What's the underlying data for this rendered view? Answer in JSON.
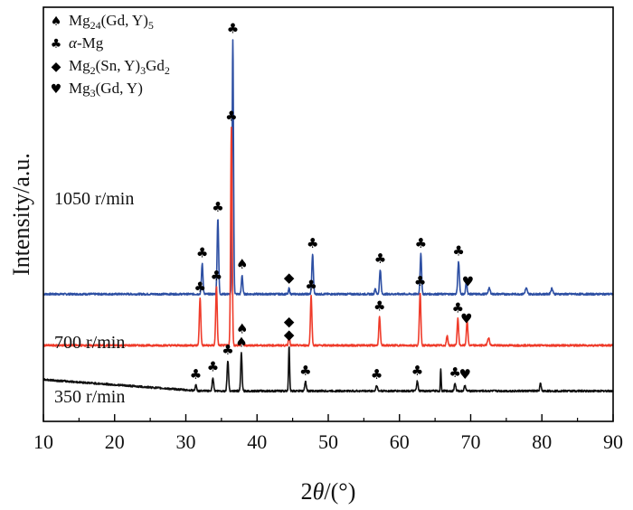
{
  "chart_data": {
    "type": "line",
    "xlabel_prefix": "2",
    "xlabel_var": "θ",
    "xlabel_suffix": "/(°)",
    "ylabel": "Intensity/a.u.",
    "xlim": [
      10,
      90
    ],
    "x_ticks": [
      "10",
      "20",
      "30",
      "40",
      "50",
      "60",
      "70",
      "80",
      "90"
    ],
    "grid": false,
    "legend_position": "top-left",
    "legend": [
      {
        "symbol": "♠",
        "symbol_name": "spade-icon",
        "parts": [
          [
            "Mg",
            ""
          ],
          [
            "24",
            "sub"
          ],
          [
            "(Gd, Y)",
            ""
          ],
          [
            "5",
            "sub"
          ]
        ]
      },
      {
        "symbol": "♣",
        "symbol_name": "club-icon",
        "parts": [
          [
            "α",
            "italic"
          ],
          [
            "-Mg",
            ""
          ]
        ]
      },
      {
        "symbol": "◆",
        "symbol_name": "diamond-icon",
        "parts": [
          [
            "Mg",
            ""
          ],
          [
            "2",
            "sub"
          ],
          [
            "(Sn, Y)",
            ""
          ],
          [
            "3",
            "sub"
          ],
          [
            "Gd",
            ""
          ],
          [
            "2",
            "sub"
          ]
        ]
      },
      {
        "symbol": "♥",
        "symbol_name": "heart-icon",
        "parts": [
          [
            "Mg",
            ""
          ],
          [
            "3",
            "sub"
          ],
          [
            "(Gd, Y)",
            ""
          ]
        ]
      }
    ],
    "series": [
      {
        "name": "1050 r/min",
        "color": "#2d4fa3",
        "baseline": 0.27,
        "peaks": [
          [
            32.3,
            0.16,
            0.22
          ],
          [
            34.5,
            0.4,
            0.22
          ],
          [
            36.6,
            1.34,
            0.2
          ],
          [
            37.9,
            0.1,
            0.2
          ],
          [
            44.5,
            0.03,
            0.18
          ],
          [
            47.8,
            0.21,
            0.22
          ],
          [
            56.6,
            0.03,
            0.2
          ],
          [
            57.3,
            0.13,
            0.22
          ],
          [
            63.0,
            0.21,
            0.22
          ],
          [
            68.3,
            0.17,
            0.24
          ],
          [
            69.4,
            0.07,
            0.2
          ],
          [
            72.6,
            0.03,
            0.3
          ],
          [
            77.8,
            0.03,
            0.3
          ],
          [
            81.4,
            0.03,
            0.3
          ]
        ],
        "markers": [
          {
            "x": 32.3,
            "symbol": "♣",
            "symbol_name": "club-icon"
          },
          {
            "x": 34.5,
            "symbol": "♣",
            "symbol_name": "club-icon"
          },
          {
            "x": 36.6,
            "symbol": "♣",
            "symbol_name": "club-icon"
          },
          {
            "x": 37.9,
            "symbol": "♠",
            "symbol_name": "spade-icon"
          },
          {
            "x": 44.5,
            "symbol": "◆",
            "symbol_name": "diamond-icon"
          },
          {
            "x": 47.8,
            "symbol": "♣",
            "symbol_name": "club-icon"
          },
          {
            "x": 57.3,
            "symbol": "♣",
            "symbol_name": "club-icon"
          },
          {
            "x": 63.0,
            "symbol": "♣",
            "symbol_name": "club-icon"
          },
          {
            "x": 68.3,
            "symbol": "♣",
            "symbol_name": "club-icon"
          },
          {
            "x": 69.6,
            "symbol": "♥",
            "symbol_name": "heart-icon"
          }
        ]
      },
      {
        "name": "700 r/min",
        "color": "#ef3b2a",
        "baseline": 0.0,
        "peaks": [
          [
            32.0,
            0.25,
            0.22
          ],
          [
            34.3,
            0.31,
            0.22
          ],
          [
            36.4,
            1.15,
            0.22
          ],
          [
            37.9,
            0.03,
            0.2
          ],
          [
            44.5,
            0.07,
            0.18
          ],
          [
            47.6,
            0.26,
            0.22
          ],
          [
            57.2,
            0.15,
            0.22
          ],
          [
            62.9,
            0.28,
            0.22
          ],
          [
            66.7,
            0.05,
            0.22
          ],
          [
            68.2,
            0.14,
            0.22
          ],
          [
            69.5,
            0.13,
            0.22
          ],
          [
            72.5,
            0.04,
            0.3
          ]
        ],
        "markers": [
          {
            "x": 32.0,
            "symbol": "♣",
            "symbol_name": "club-icon"
          },
          {
            "x": 34.3,
            "symbol": "♣",
            "symbol_name": "club-icon"
          },
          {
            "x": 36.4,
            "symbol": "♣",
            "symbol_name": "club-icon"
          },
          {
            "x": 37.9,
            "symbol": "♠",
            "symbol_name": "spade-icon"
          },
          {
            "x": 44.5,
            "symbol": "◆",
            "symbol_name": "diamond-icon"
          },
          {
            "x": 47.6,
            "symbol": "♣",
            "symbol_name": "club-icon"
          },
          {
            "x": 57.2,
            "symbol": "♣",
            "symbol_name": "club-icon"
          },
          {
            "x": 62.9,
            "symbol": "♣",
            "symbol_name": "club-icon"
          },
          {
            "x": 68.2,
            "symbol": "♣",
            "symbol_name": "club-icon"
          },
          {
            "x": 69.4,
            "symbol": "♥",
            "symbol_name": "heart-icon"
          }
        ]
      },
      {
        "name": "350 r/min",
        "color": "#111111",
        "baseline": -0.24,
        "peaks": [
          [
            31.4,
            0.03,
            0.2
          ],
          [
            33.8,
            0.07,
            0.22
          ],
          [
            35.9,
            0.16,
            0.22
          ],
          [
            37.8,
            0.2,
            0.2
          ],
          [
            44.5,
            0.24,
            0.16
          ],
          [
            46.8,
            0.05,
            0.22
          ],
          [
            56.8,
            0.03,
            0.22
          ],
          [
            62.5,
            0.05,
            0.22
          ],
          [
            65.8,
            0.12,
            0.12
          ],
          [
            67.8,
            0.04,
            0.22
          ],
          [
            69.2,
            0.03,
            0.22
          ],
          [
            79.8,
            0.04,
            0.2
          ]
        ],
        "markers": [
          {
            "x": 31.4,
            "symbol": "♣",
            "symbol_name": "club-icon"
          },
          {
            "x": 33.8,
            "symbol": "♣",
            "symbol_name": "club-icon"
          },
          {
            "x": 35.9,
            "symbol": "♣",
            "symbol_name": "club-icon"
          },
          {
            "x": 37.8,
            "symbol": "♠",
            "symbol_name": "spade-icon"
          },
          {
            "x": 44.5,
            "symbol": "◆",
            "symbol_name": "diamond-icon"
          },
          {
            "x": 46.8,
            "symbol": "♣",
            "symbol_name": "club-icon"
          },
          {
            "x": 56.8,
            "symbol": "♣",
            "symbol_name": "club-icon"
          },
          {
            "x": 62.5,
            "symbol": "♣",
            "symbol_name": "club-icon"
          },
          {
            "x": 67.8,
            "symbol": "♣",
            "symbol_name": "club-icon"
          },
          {
            "x": 69.2,
            "symbol": "♥",
            "symbol_name": "heart-icon"
          }
        ]
      }
    ]
  }
}
